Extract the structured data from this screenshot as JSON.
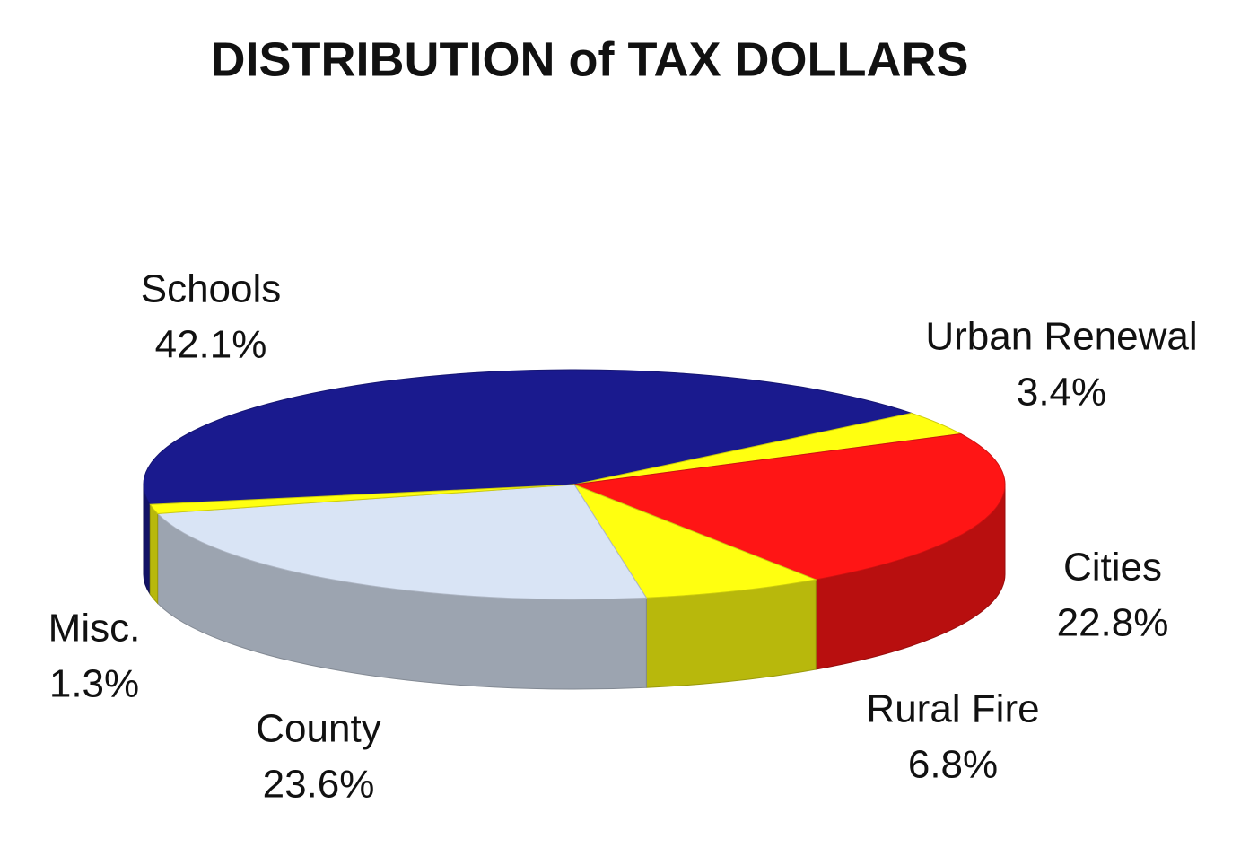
{
  "chart_data": {
    "type": "pie",
    "title": "DISTRIBUTION of TAX DOLLARS",
    "categories": [
      "Schools",
      "Urban Renewal",
      "Cities",
      "Rural Fire",
      "County",
      "Misc."
    ],
    "values": [
      42.1,
      3.4,
      22.8,
      6.8,
      23.6,
      1.3
    ],
    "value_labels": [
      "42.1%",
      "3.4%",
      "22.8%",
      "6.8%",
      "23.6%",
      "1.3%"
    ],
    "colors": [
      "#1a1a8e",
      "#ffff10",
      "#ff1515",
      "#ffff10",
      "#d9e4f5",
      "#ffff10"
    ]
  }
}
